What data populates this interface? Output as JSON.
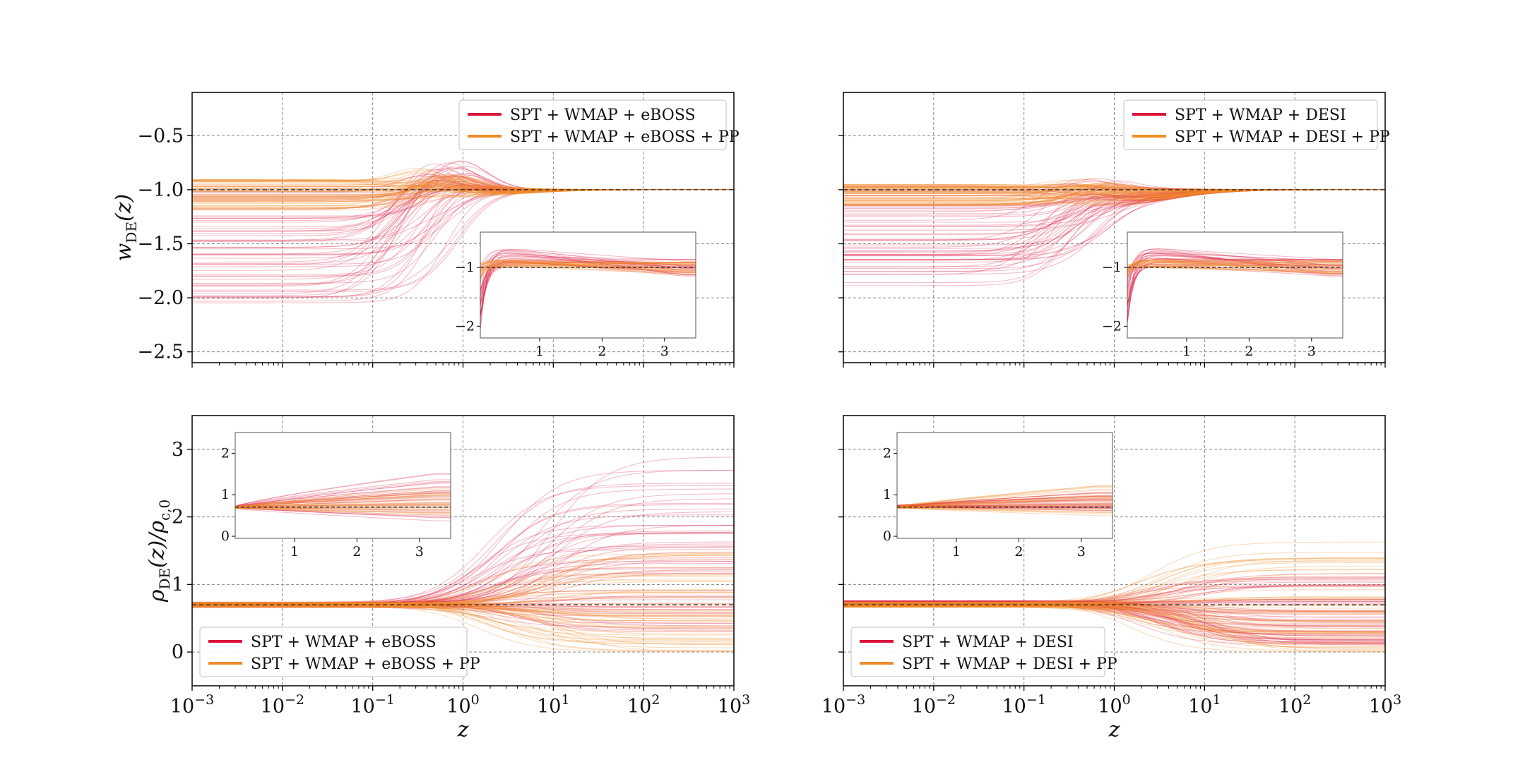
{
  "figure": {
    "colors": {
      "eboss": "#dc143c",
      "eboss_pp": "#f28c28",
      "desi": "#dc143c",
      "desi_pp": "#f28c28",
      "grid": "#888888",
      "reference": "#222222"
    },
    "xlabel": "z"
  },
  "chart_data": [
    {
      "id": "w-eboss",
      "type": "line",
      "quantity": "w",
      "panel": "top-left",
      "xscale": "log",
      "xlim": [
        0.001,
        1000
      ],
      "ylim": [
        -2.6,
        -0.1
      ],
      "yticks": [
        -2.5,
        -2.0,
        -1.5,
        -1.0,
        -0.5
      ],
      "ytick_labels": [
        "−2.5",
        "−2.0",
        "−1.5",
        "−1.0",
        "−0.5"
      ],
      "xtick_labels": [],
      "ylabel": "w_DE(z)",
      "ylabel_base": "w",
      "ylabel_sub": "DE",
      "ylabel_tail": "(z)",
      "reference_line": -1.0,
      "legend_position": "top-right",
      "series": [
        {
          "name": "SPT + WMAP + eBOSS",
          "color": "#dc143c",
          "n_samples": 60,
          "w0_range": [
            -2.05,
            -0.95
          ],
          "bump": 0.3,
          "tail_range": [
            -1.0,
            -1.0
          ]
        },
        {
          "name": "SPT + WMAP + eBOSS + PP",
          "color": "#f28c28",
          "n_samples": 60,
          "w0_range": [
            -1.2,
            -0.9
          ],
          "bump": 0.15,
          "tail_range": [
            -1.15,
            -0.95
          ]
        }
      ],
      "inset": {
        "xlim": [
          0.05,
          3.5
        ],
        "ylim": [
          -2.2,
          -0.4
        ],
        "xticks": [
          1,
          2,
          3
        ],
        "xtick_labels": [
          "1",
          "2",
          "3"
        ],
        "yticks": [
          -2,
          -1
        ],
        "ytick_labels": [
          "−2",
          "−1"
        ],
        "reference_line": -1.0
      }
    },
    {
      "id": "w-desi",
      "type": "line",
      "quantity": "w",
      "panel": "top-right",
      "xscale": "log",
      "xlim": [
        0.001,
        1000
      ],
      "ylim": [
        -2.6,
        -0.1
      ],
      "yticks": [
        -2.5,
        -2.0,
        -1.5,
        -1.0,
        -0.5
      ],
      "ytick_labels": [],
      "xtick_labels": [],
      "reference_line": -1.0,
      "legend_position": "top-right",
      "series": [
        {
          "name": "SPT + WMAP + DESI",
          "color": "#dc143c",
          "n_samples": 60,
          "w0_range": [
            -1.95,
            -0.95
          ],
          "bump": 0.12,
          "tail_range": [
            -1.3,
            -0.95
          ]
        },
        {
          "name": "SPT + WMAP + DESI + PP",
          "color": "#f28c28",
          "n_samples": 60,
          "w0_range": [
            -1.15,
            -0.95
          ],
          "bump": 0.1,
          "tail_range": [
            -1.3,
            -0.95
          ]
        }
      ],
      "inset": {
        "xlim": [
          0.05,
          3.5
        ],
        "ylim": [
          -2.2,
          -0.4
        ],
        "xticks": [
          1,
          2,
          3
        ],
        "xtick_labels": [
          "1",
          "2",
          "3"
        ],
        "yticks": [
          -2,
          -1
        ],
        "ytick_labels": [
          "−2",
          "−1"
        ],
        "reference_line": -1.0
      }
    },
    {
      "id": "rho-eboss",
      "type": "line",
      "quantity": "rho",
      "panel": "bottom-left",
      "xscale": "log",
      "xlim": [
        0.001,
        1000
      ],
      "ylim": [
        -0.5,
        3.5
      ],
      "yticks": [
        0,
        1,
        2,
        3
      ],
      "ytick_labels": [
        "0",
        "1",
        "2",
        "3"
      ],
      "xtick_base": "10",
      "xtick_exponents": [
        "−3",
        "−2",
        "−1",
        "0",
        "1",
        "2",
        "3"
      ],
      "ylabel": "ρ_DE(z)/ρ_c,0",
      "ylabel_base": "ρ",
      "ylabel_sub": "DE",
      "ylabel_mid": "(z)/ρ",
      "ylabel_sub2": "c,0",
      "xlabel": "z",
      "reference_line": 0.7,
      "legend_position": "bottom-left",
      "series": [
        {
          "name": "SPT + WMAP + eBOSS",
          "color": "#dc143c",
          "n_samples": 60,
          "start": 0.7,
          "end_range": [
            0.3,
            2.9
          ]
        },
        {
          "name": "SPT + WMAP + eBOSS + PP",
          "color": "#f28c28",
          "n_samples": 60,
          "start": 0.7,
          "end_range": [
            0.0,
            1.5
          ]
        }
      ],
      "inset": {
        "xlim": [
          0.05,
          3.5
        ],
        "ylim": [
          -0.05,
          2.5
        ],
        "xticks": [
          1,
          2,
          3
        ],
        "xtick_labels": [
          "1",
          "2",
          "3"
        ],
        "yticks": [
          0,
          1,
          2
        ],
        "ytick_labels": [
          "0",
          "1",
          "2"
        ],
        "reference_line": 0.7
      }
    },
    {
      "id": "rho-desi",
      "type": "line",
      "quantity": "rho",
      "panel": "bottom-right",
      "xscale": "log",
      "xlim": [
        0.001,
        1000
      ],
      "ylim": [
        -0.5,
        3.5
      ],
      "yticks": [
        0,
        1,
        2,
        3
      ],
      "ytick_labels": [],
      "xtick_base": "10",
      "xtick_exponents": [
        "−3",
        "−2",
        "−1",
        "0",
        "1",
        "2",
        "3"
      ],
      "xlabel": "z",
      "reference_line": 0.7,
      "legend_position": "bottom-left",
      "series": [
        {
          "name": "SPT + WMAP + DESI",
          "color": "#dc143c",
          "n_samples": 60,
          "start": 0.72,
          "end_range": [
            0.1,
            1.2
          ]
        },
        {
          "name": "SPT + WMAP + DESI + PP",
          "color": "#f28c28",
          "n_samples": 60,
          "start": 0.7,
          "end_range": [
            0.0,
            1.65
          ]
        }
      ],
      "inset": {
        "xlim": [
          0.05,
          3.5
        ],
        "ylim": [
          -0.05,
          2.5
        ],
        "xticks": [
          1,
          2,
          3
        ],
        "xtick_labels": [
          "1",
          "2",
          "3"
        ],
        "yticks": [
          0,
          1,
          2
        ],
        "ytick_labels": [
          "0",
          "1",
          "2"
        ],
        "reference_line": 0.7
      }
    }
  ]
}
